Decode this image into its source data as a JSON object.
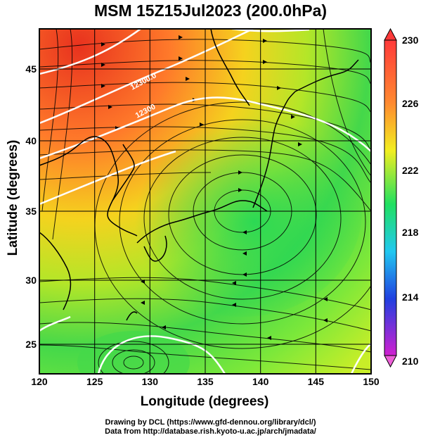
{
  "title": "MSM 15Z15Jul2023 (200.0hPa)",
  "x_axis": {
    "label": "Longitude (degrees)",
    "ticks": [
      "120",
      "125",
      "130",
      "135",
      "140",
      "145",
      "150"
    ],
    "range": [
      120,
      150
    ]
  },
  "y_axis": {
    "label": "Latitude  (degrees)",
    "ticks": [
      "25",
      "30",
      "35",
      "40",
      "45"
    ],
    "range": [
      22.5,
      47.5
    ]
  },
  "colorbar": {
    "ticks": [
      "230",
      "226",
      "222",
      "218",
      "214",
      "210"
    ],
    "range": [
      210,
      230
    ],
    "colors": [
      "#ff3a3a",
      "#ff8a30",
      "#f2ee20",
      "#20e060",
      "#20c8f0",
      "#2040e0",
      "#d020d0"
    ]
  },
  "contours": {
    "labels": [
      "12300.0",
      "12300"
    ],
    "color": "#ffffff"
  },
  "footer": {
    "line1": "Drawing by DCL (https://www.gfd-dennou.org/library/dcl/)",
    "line2": "Data from http://database.rish.kyoto-u.ac.jp/arch/jmadata/"
  }
}
